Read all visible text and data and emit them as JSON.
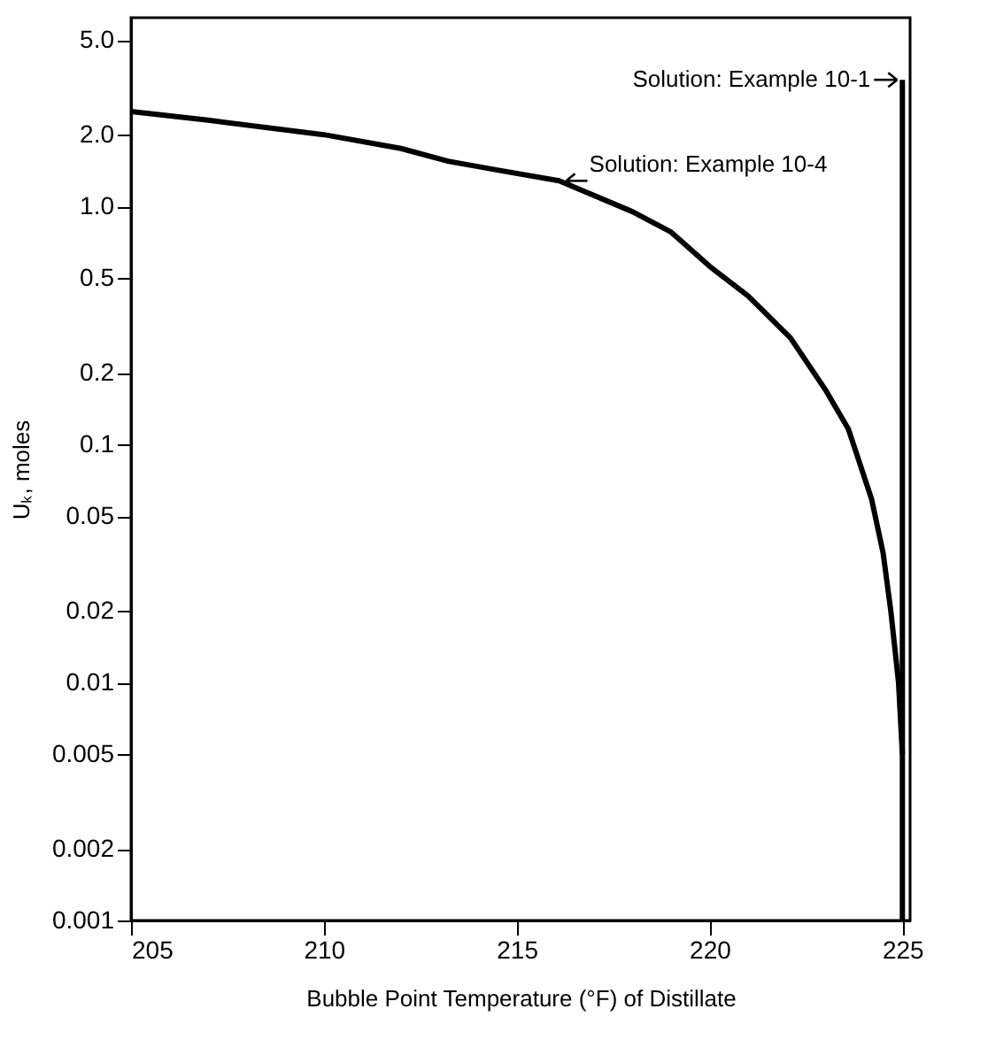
{
  "chart_data": {
    "type": "line",
    "xlabel": "Bubble Point Temperature (°F) of Distillate",
    "ylabel": "Uₖ, moles",
    "log": "y",
    "grid": false,
    "marker": "none",
    "line_style": "solid",
    "xlim": [
      205,
      225.2
    ],
    "xticks": [
      205,
      210,
      215,
      220,
      225
    ],
    "ylim": [
      0.001,
      6.2
    ],
    "yticks": [
      {
        "value": 5,
        "label": "5.0"
      },
      {
        "value": 2,
        "label": "2.0"
      },
      {
        "value": 1,
        "label": "1.0"
      },
      0.5,
      0.2,
      0.1,
      0.05,
      0.02,
      0.01,
      0.005,
      0.002,
      0.001
    ],
    "series": [
      {
        "color": "#000000",
        "x": [
          205,
          207,
          210,
          212,
          213.2,
          214.5,
          216.1,
          218,
          219,
          220,
          221,
          222.1,
          223,
          223.6,
          224.2,
          224.5,
          224.7,
          224.9,
          225
        ],
        "values": [
          2.5,
          2.3,
          2.0,
          1.75,
          1.55,
          1.42,
          1.28,
          0.95,
          0.78,
          0.56,
          0.42,
          0.28,
          0.17,
          0.116,
          0.059,
          0.035,
          0.02,
          0.01,
          0.005
        ]
      },
      {
        "color": "#000000",
        "x": [
          225,
          225,
          225
        ],
        "values": [
          0.001,
          0.005,
          3.4
        ]
      }
    ],
    "annotations": [
      {
        "text": "Solution: Example 10-1",
        "x": 225,
        "y": 3.4
      },
      {
        "text": "Solution: Example 10-4",
        "x": 216.1,
        "y": 1.28
      }
    ]
  }
}
